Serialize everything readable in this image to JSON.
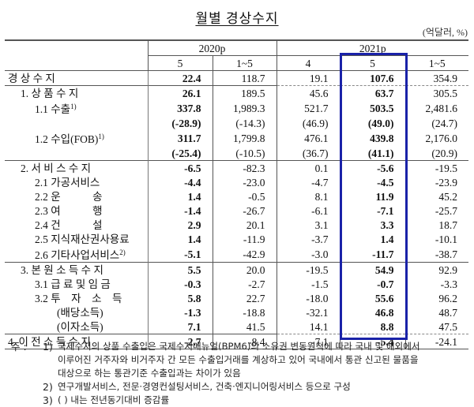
{
  "title": "월별 경상수지",
  "unit": "(억달러, %)",
  "header": {
    "groups": [
      {
        "label": "2020p",
        "columns": [
          "5",
          "1~5"
        ]
      },
      {
        "label": "2021p",
        "columns": [
          "4",
          "5",
          "1~5"
        ]
      }
    ]
  },
  "highlight_color": "#1a22a8",
  "rows": [
    {
      "label": "경 상 수 지",
      "sup": "",
      "indent": 0,
      "values": [
        "22.4",
        "118.7",
        "19.1",
        "107.6",
        "354.9"
      ],
      "sep": "none"
    },
    {
      "label": "1. 상 품 수 지",
      "sup": "",
      "indent": 1,
      "values": [
        "26.1",
        "189.5",
        "45.6",
        "63.7",
        "305.5"
      ],
      "sep": "mixed"
    },
    {
      "label": "1.1 수출",
      "sup": "1)",
      "indent": 2,
      "values": [
        "337.8",
        "1,989.3",
        "521.7",
        "503.5",
        "2,481.6"
      ],
      "sep": "none"
    },
    {
      "label": "",
      "sup": "",
      "indent": 2,
      "values": [
        "(-28.9)",
        "(-14.3)",
        "(46.9)",
        "(49.0)",
        "(24.7)"
      ],
      "sep": "none"
    },
    {
      "label": "1.2 수입(FOB)",
      "sup": "1)",
      "indent": 2,
      "values": [
        "311.7",
        "1,799.8",
        "476.1",
        "439.8",
        "2,176.0"
      ],
      "sep": "none"
    },
    {
      "label": "",
      "sup": "",
      "indent": 2,
      "values": [
        "(-25.4)",
        "(-10.5)",
        "(36.7)",
        "(41.1)",
        "(20.9)"
      ],
      "sep": "none"
    },
    {
      "label": "2. 서 비 스 수 지",
      "sup": "",
      "indent": 1,
      "values": [
        "-6.5",
        "-82.3",
        "0.1",
        "-5.6",
        "-19.5"
      ],
      "sep": "solid"
    },
    {
      "label": "2.1 가공서비스",
      "sup": "",
      "indent": 2,
      "values": [
        "-4.4",
        "-23.0",
        "-4.7",
        "-4.5",
        "-23.9"
      ],
      "sep": "none"
    },
    {
      "label": "2.2 운　　　송",
      "sup": "",
      "indent": 2,
      "values": [
        "1.4",
        "-0.5",
        "8.1",
        "11.9",
        "45.2"
      ],
      "sep": "none"
    },
    {
      "label": "2.3 여　　　행",
      "sup": "",
      "indent": 2,
      "values": [
        "-1.4",
        "-26.7",
        "-6.1",
        "-7.1",
        "-25.7"
      ],
      "sep": "none"
    },
    {
      "label": "2.4 건　　　설",
      "sup": "",
      "indent": 2,
      "values": [
        "2.9",
        "20.1",
        "3.1",
        "3.3",
        "18.7"
      ],
      "sep": "none"
    },
    {
      "label": "2.5 지식재산권사용료",
      "sup": "",
      "indent": 2,
      "values": [
        "1.4",
        "-11.9",
        "-3.7",
        "1.4",
        "-10.1"
      ],
      "sep": "none"
    },
    {
      "label": "2.6 기타사업서비스",
      "sup": "2)",
      "indent": 2,
      "values": [
        "-5.1",
        "-42.9",
        "-3.0",
        "-11.7",
        "-38.7"
      ],
      "sep": "none"
    },
    {
      "label": "3. 본 원 소 득 수 지",
      "sup": "",
      "indent": 1,
      "values": [
        "5.5",
        "20.0",
        "-19.5",
        "54.9",
        "92.9"
      ],
      "sep": "solid"
    },
    {
      "label": "3.1 급 료 및 임 금",
      "sup": "",
      "indent": 2,
      "values": [
        "-0.3",
        "-2.7",
        "-1.5",
        "-0.7",
        "-3.3"
      ],
      "sep": "none"
    },
    {
      "label": "3.2 투　자　소　득",
      "sup": "",
      "indent": 2,
      "values": [
        "5.8",
        "22.7",
        "-18.0",
        "55.6",
        "96.2"
      ],
      "sep": "none"
    },
    {
      "label": "(배당소득)",
      "sup": "",
      "indent": 3,
      "values": [
        "-1.3",
        "-18.8",
        "-32.1",
        "46.8",
        "48.7"
      ],
      "sep": "none"
    },
    {
      "label": "(이자소득)",
      "sup": "",
      "indent": 3,
      "values": [
        "7.1",
        "41.5",
        "14.1",
        "8.8",
        "47.5"
      ],
      "sep": "none"
    },
    {
      "label": "4. 이 전 소 득 수 지",
      "sup": "",
      "indent": 0,
      "values": [
        "-2.7",
        "-8.4",
        "-7.1",
        "-5.4",
        "-24.1"
      ],
      "sep": "mixed"
    }
  ],
  "notes": {
    "prefix": "주 :",
    "items": [
      {
        "num": "1)",
        "lines": [
          "국제수지의 상품 수출입은 국제수지매뉴얼(BPM6)의 소유권 변동원칙에 따라 국내 및 해외에서",
          "이루어진 거주자와 비거주자 간 모든 수출입거래를 계상하고 있어 국내에서 통관 신고된 물품을",
          "대상으로 하는 통관기준 수출입과는 차이가 있음"
        ]
      },
      {
        "num": "2)",
        "lines": [
          "연구개발서비스, 전문·경영컨설팅서비스, 건축·엔지니어링서비스 등으로 구성"
        ]
      },
      {
        "num": "3)",
        "lines": [
          "(  ) 내는 전년동기대비 증감률"
        ]
      }
    ]
  }
}
